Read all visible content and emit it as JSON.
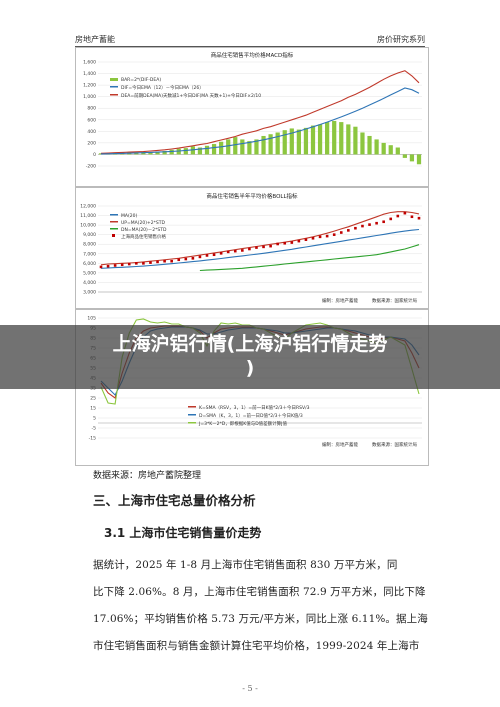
{
  "header": {
    "left": "房地产蓄能",
    "right": "房价研究系列"
  },
  "banner": {
    "line1": "上海沪铝行情(上海沪铝行情走势",
    "line2": ")"
  },
  "charts": [
    {
      "title": "商品住宅销售平均价格MACD指标",
      "legend": [
        "BAR=2*(DIF-DEA)",
        "DIF=今日EMA（12）－今日EMA（26）",
        "DEA=前期DEA(MA)天数减1+今日DIF(MA 天数+1)+今日DIF×2/10"
      ],
      "ylim": [
        -200,
        1600
      ],
      "yticks": [
        "1,600",
        "1,400",
        "1,200",
        "1,000",
        "800",
        "600",
        "400",
        "200",
        "0",
        "-200"
      ],
      "colors": {
        "bar": "#8cc63f",
        "dif": "#c0392b",
        "dea": "#2e75b6"
      },
      "chart_data": {
        "type": "bar",
        "series": [
          {
            "name": "BAR",
            "values": [
              20,
              25,
              30,
              35,
              40,
              40,
              45,
              40,
              50,
              60,
              80,
              100,
              110,
              140,
              120,
              150,
              180,
              220,
              260,
              300,
              260,
              230,
              260,
              320,
              350,
              380,
              420,
              450,
              430,
              460,
              500,
              520,
              560,
              580,
              560,
              520,
              480,
              380,
              320,
              260,
              200,
              160,
              120,
              -60,
              -120,
              -170
            ]
          },
          {
            "name": "DIF",
            "values": [
              20,
              25,
              30,
              35,
              40,
              45,
              50,
              60,
              70,
              80,
              95,
              110,
              130,
              150,
              170,
              190,
              220,
              250,
              280,
              310,
              350,
              380,
              410,
              450,
              480,
              520,
              560,
              600,
              640,
              680,
              730,
              780,
              830,
              880,
              930,
              990,
              1040,
              1100,
              1160,
              1230,
              1300,
              1360,
              1410,
              1450,
              1360,
              1240
            ]
          },
          {
            "name": "DEA",
            "values": [
              10,
              12,
              15,
              18,
              22,
              26,
              30,
              35,
              40,
              46,
              52,
              60,
              70,
              80,
              92,
              104,
              118,
              132,
              150,
              168,
              188,
              208,
              230,
              254,
              280,
              308,
              338,
              370,
              404,
              440,
              478,
              518,
              560,
              604,
              650,
              698,
              748,
              800,
              855,
              912,
              970,
              1030,
              1090,
              1150,
              1120,
              1060
            ]
          }
        ]
      }
    },
    {
      "title": "商品住宅销售半年平均价格BOLL指标",
      "legend": [
        "MA(20)",
        "UP=MA(20)+2*STD",
        "DN=MA(20)－2*STD",
        "上海商品住宅销售价格"
      ],
      "ylim": [
        0,
        12000
      ],
      "yticks": [
        "12,000",
        "11,000",
        "10,000",
        "9,000",
        "8,000",
        "7,000",
        "6,000",
        "5,000",
        "4,000",
        "3,000"
      ],
      "colors": {
        "ma": "#2e75b6",
        "up": "#c0392b",
        "dn": "#2ca02c",
        "price": "#c00000"
      },
      "notes": [
        "编制：房地产蓄能",
        "数据来源：国家统计局"
      ],
      "chart_data": {
        "type": "line",
        "series": [
          {
            "name": "MA",
            "values": [
              3300,
              3350,
              3400,
              3450,
              3500,
              3560,
              3620,
              3700,
              3780,
              3860,
              3950,
              4040,
              4140,
              4240,
              4340,
              4450,
              4560,
              4680,
              4800,
              4920,
              5040,
              5160,
              5280,
              5400,
              5540,
              5680,
              5820,
              5960,
              6120,
              6280,
              6440,
              6600,
              6760,
              6920,
              7080,
              7240,
              7400,
              7560,
              7720,
              7880,
              8040,
              8200,
              8360,
              8500,
              8620,
              8720
            ]
          },
          {
            "name": "UP",
            "values": [
              3800,
              3900,
              3950,
              4000,
              4050,
              4100,
              4200,
              4300,
              4400,
              4500,
              4600,
              4700,
              4850,
              5000,
              5150,
              5300,
              5450,
              5600,
              5750,
              5900,
              6050,
              6200,
              6350,
              6500,
              6650,
              6800,
              6950,
              7100,
              7300,
              7500,
              7700,
              7950,
              8200,
              8500,
              8800,
              9100,
              9450,
              9800,
              10150,
              10500,
              10850,
              11100,
              11200,
              11200,
              11100,
              10900
            ]
          },
          {
            "name": "DN",
            "values": [
              null,
              null,
              null,
              null,
              null,
              null,
              null,
              null,
              null,
              null,
              null,
              null,
              null,
              null,
              3000,
              3050,
              3100,
              3150,
              3200,
              3250,
              3300,
              3400,
              3500,
              3600,
              3700,
              3800,
              3900,
              4000,
              4100,
              4200,
              4300,
              4400,
              4500,
              4600,
              4700,
              4800,
              4900,
              5000,
              5100,
              5200,
              5400,
              5600,
              5800,
              6000,
              6300,
              6600
            ]
          },
          {
            "name": "价格",
            "values": [
              3500,
              3600,
              3700,
              3800,
              3900,
              4000,
              4000,
              4100,
              4200,
              4300,
              4300,
              4500,
              4600,
              4700,
              4900,
              5100,
              5200,
              5400,
              5600,
              5700,
              5800,
              6000,
              6200,
              6300,
              6400,
              6700,
              6800,
              6900,
              7100,
              7300,
              7500,
              7700,
              7800,
              8000,
              8300,
              8600,
              8900,
              9200,
              9400,
              9600,
              9800,
              10200,
              10600,
              11000,
              10500,
              10300
            ]
          }
        ]
      }
    },
    {
      "title": "",
      "legend": [
        "K=SMA（RSV，3，1）=前一日K值*2/3＋今日RSV/3",
        "D=SMA（K，3，1）=前一日D值*2/3＋今日K值/3",
        "J=3*K－2*D，即根据K值与D值差额计算J值"
      ],
      "ylim": [
        -15,
        105
      ],
      "yticks": [
        "105",
        "95",
        "85",
        "75",
        "65",
        "55",
        "45",
        "35",
        "25",
        "15",
        "5",
        "-5",
        "-15"
      ],
      "colors": {
        "k": "#c0392b",
        "d": "#2e75b6",
        "j": "#8cc63f"
      },
      "notes": [
        "编制：房地产蓄能",
        "数据来源：国家统计局"
      ],
      "chart_data": {
        "type": "line",
        "series": [
          {
            "name": "K",
            "values": [
              40,
              30,
              25,
              50,
              70,
              85,
              92,
              95,
              96,
              97,
              97,
              97,
              96,
              95,
              92,
              85,
              90,
              94,
              95,
              96,
              96,
              96,
              95,
              94,
              92,
              90,
              88,
              90,
              92,
              94,
              95,
              96,
              96,
              95,
              94,
              92,
              90,
              88,
              86,
              84,
              85,
              86,
              84,
              82,
              70,
              55
            ]
          },
          {
            "name": "D",
            "values": [
              42,
              35,
              28,
              42,
              60,
              76,
              86,
              92,
              94,
              95,
              96,
              96,
              96,
              95,
              93,
              89,
              89,
              91,
              93,
              94,
              95,
              95,
              95,
              94,
              93,
              92,
              90,
              90,
              91,
              92,
              93,
              94,
              95,
              95,
              94,
              93,
              92,
              90,
              88,
              86,
              86,
              86,
              85,
              84,
              78,
              68
            ]
          },
          {
            "name": "J",
            "values": [
              36,
              20,
              19,
              66,
              90,
              103,
              104,
              101,
              100,
              101,
              99,
              99,
              96,
              95,
              90,
              77,
              92,
              100,
              99,
              100,
              98,
              98,
              95,
              94,
              90,
              86,
              84,
              90,
              94,
              98,
              99,
              100,
              98,
              95,
              94,
              90,
              86,
              84,
              82,
              80,
              83,
              86,
              82,
              78,
              54,
              29
            ]
          }
        ]
      }
    }
  ],
  "source": "数据来源：房地产蓄院整理",
  "section": {
    "h2": "三、上海市住宅总量价格分析",
    "h3": "3.1 上海市住宅销售量价走势"
  },
  "paragraph": [
    "据统计，2025 年 1-8 月上海市住宅销售面积 830 万平方米，同",
    "比下降 2.06%。8 月，上海市住宅销售面积 72.9 万平方米，同比下降",
    "17.06%；平均销售价格 5.73 万元/平方米，同比上涨 6.11%。据上海",
    "市住宅销售面积与销售金额计算住宅平均价格，1999-2024 年上海市"
  ],
  "page_number": "- 5 -"
}
